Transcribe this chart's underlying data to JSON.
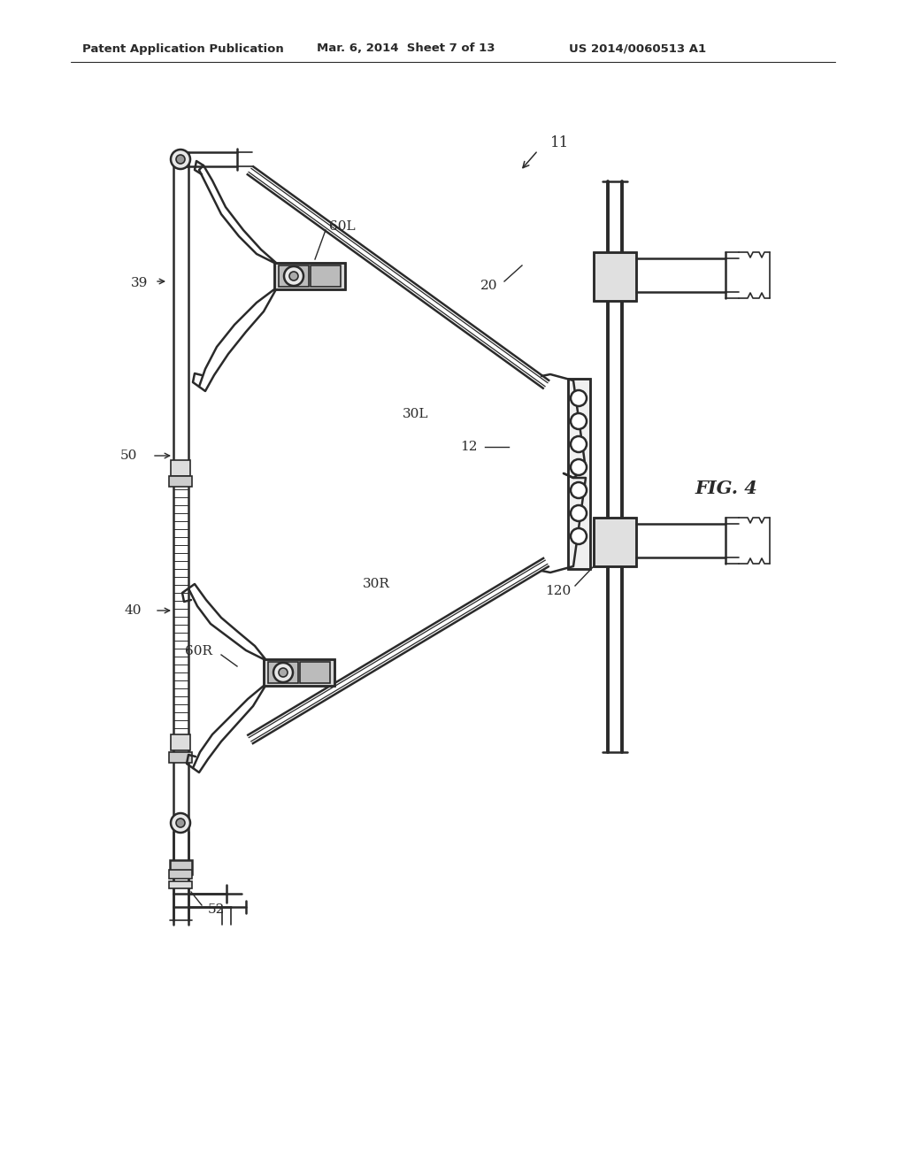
{
  "bg_color": "#ffffff",
  "line_color": "#2a2a2a",
  "header_left": "Patent Application Publication",
  "header_mid": "Mar. 6, 2014  Sheet 7 of 13",
  "header_right": "US 2014/0060513 A1",
  "fig_label": "FIG. 4"
}
